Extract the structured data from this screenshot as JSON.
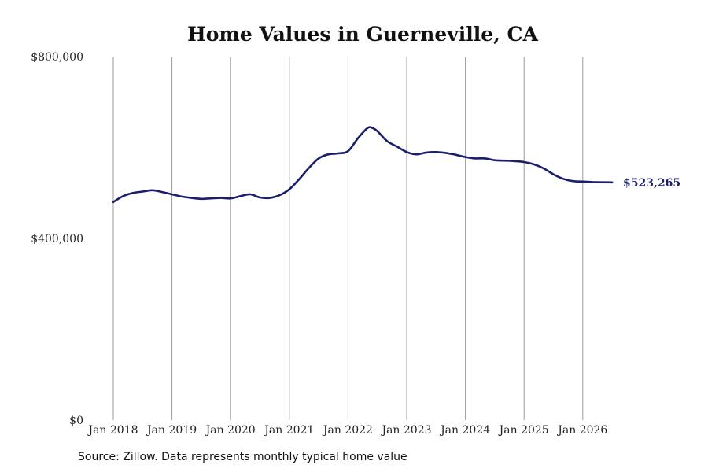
{
  "chart_data": {
    "type": "line",
    "title": "Home Values in Guerneville, CA",
    "xlabel": "",
    "ylabel": "",
    "ylim": [
      0,
      800000
    ],
    "y_ticks": [
      {
        "value": 0,
        "label": "$0"
      },
      {
        "value": 400000,
        "label": "$400,000"
      },
      {
        "value": 800000,
        "label": "$800,000"
      }
    ],
    "x_ticks": [
      {
        "date": "2018-01",
        "label": "Jan 2018"
      },
      {
        "date": "2019-01",
        "label": "Jan 2019"
      },
      {
        "date": "2020-01",
        "label": "Jan 2020"
      },
      {
        "date": "2021-01",
        "label": "Jan 2021"
      },
      {
        "date": "2022-01",
        "label": "Jan 2022"
      },
      {
        "date": "2023-01",
        "label": "Jan 2023"
      },
      {
        "date": "2024-01",
        "label": "Jan 2024"
      },
      {
        "date": "2025-01",
        "label": "Jan 2025"
      },
      {
        "date": "2026-01",
        "label": "Jan 2026"
      }
    ],
    "grid": {
      "vertical": true,
      "horizontal": false
    },
    "series": [
      {
        "color": "#1a1f6b",
        "end_label": "$523,265",
        "points": [
          [
            "2018-01",
            480000
          ],
          [
            "2018-03",
            493000
          ],
          [
            "2018-05",
            500000
          ],
          [
            "2018-07",
            503000
          ],
          [
            "2018-09",
            506000
          ],
          [
            "2018-11",
            502000
          ],
          [
            "2019-01",
            497000
          ],
          [
            "2019-03",
            492000
          ],
          [
            "2019-05",
            489000
          ],
          [
            "2019-07",
            487000
          ],
          [
            "2019-09",
            488000
          ],
          [
            "2019-11",
            489000
          ],
          [
            "2020-01",
            488000
          ],
          [
            "2020-03",
            493000
          ],
          [
            "2020-05",
            497000
          ],
          [
            "2020-07",
            490000
          ],
          [
            "2020-09",
            489000
          ],
          [
            "2020-11",
            495000
          ],
          [
            "2021-01",
            508000
          ],
          [
            "2021-03",
            530000
          ],
          [
            "2021-05",
            555000
          ],
          [
            "2021-07",
            576000
          ],
          [
            "2021-09",
            585000
          ],
          [
            "2021-11",
            587000
          ],
          [
            "2022-01",
            592000
          ],
          [
            "2022-03",
            620000
          ],
          [
            "2022-05",
            643000
          ],
          [
            "2022-06",
            643000
          ],
          [
            "2022-07",
            636000
          ],
          [
            "2022-09",
            614000
          ],
          [
            "2022-11",
            602000
          ],
          [
            "2023-01",
            590000
          ],
          [
            "2023-03",
            585000
          ],
          [
            "2023-05",
            589000
          ],
          [
            "2023-07",
            590000
          ],
          [
            "2023-09",
            588000
          ],
          [
            "2023-11",
            584000
          ],
          [
            "2024-01",
            579000
          ],
          [
            "2024-03",
            576000
          ],
          [
            "2024-05",
            576000
          ],
          [
            "2024-07",
            572000
          ],
          [
            "2024-09",
            571000
          ],
          [
            "2024-11",
            570000
          ],
          [
            "2025-01",
            568000
          ],
          [
            "2025-03",
            563000
          ],
          [
            "2025-05",
            554000
          ],
          [
            "2025-07",
            541000
          ],
          [
            "2025-09",
            531000
          ],
          [
            "2025-11",
            526000
          ],
          [
            "2026-01",
            525000
          ],
          [
            "2026-03",
            524000
          ],
          [
            "2026-05",
            523500
          ],
          [
            "2026-07",
            523265
          ]
        ]
      }
    ]
  },
  "source_note": "Source: Zillow. Data represents monthly typical home value"
}
